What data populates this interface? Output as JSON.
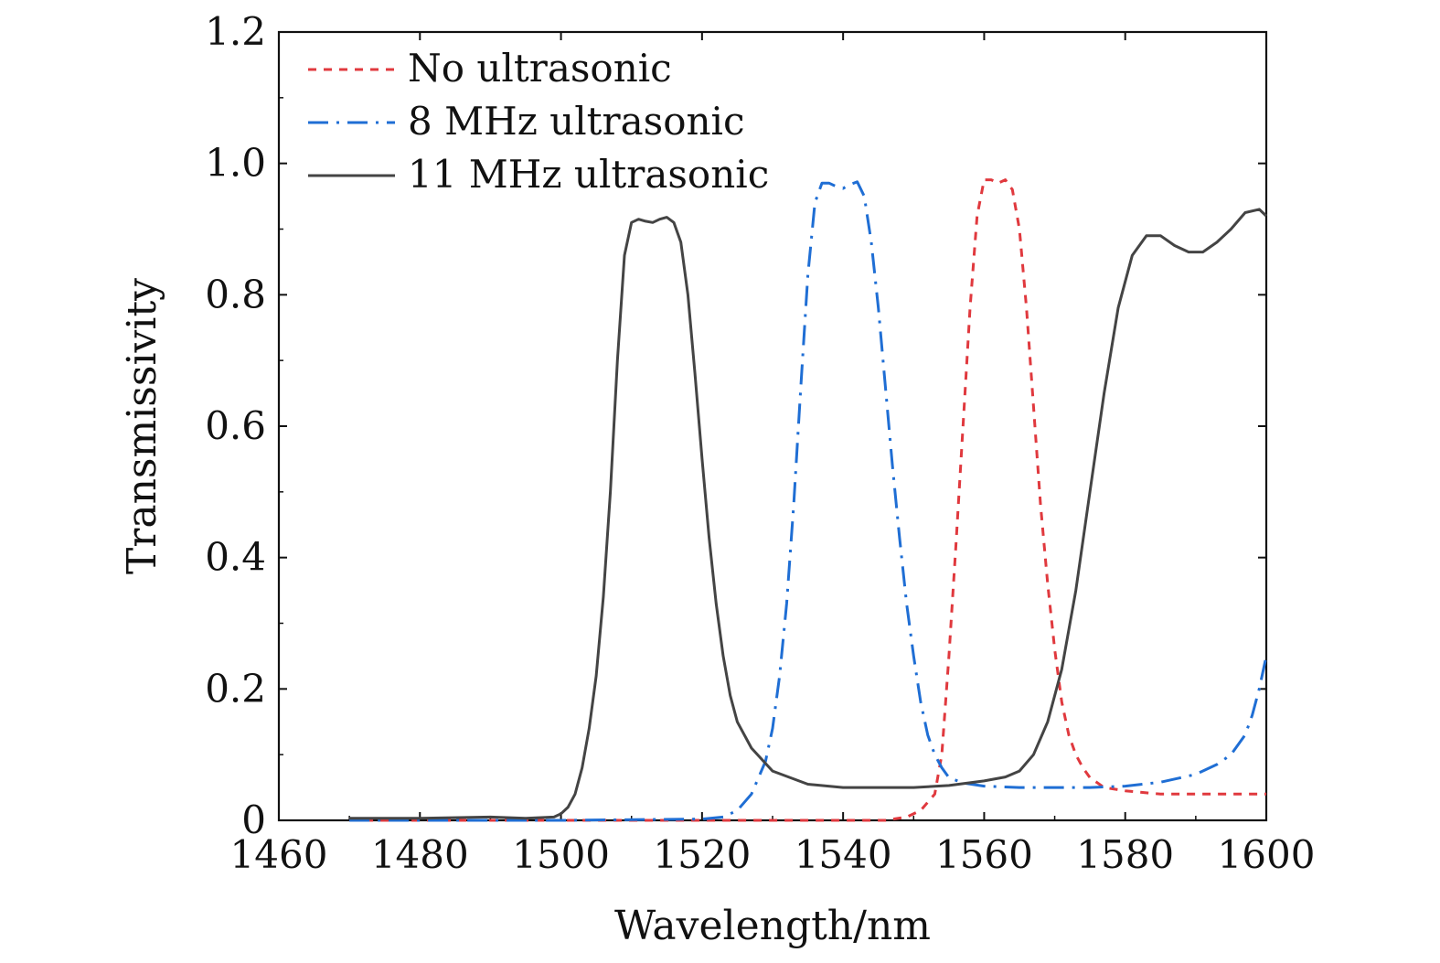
{
  "chart_data": {
    "type": "line",
    "xlabel": "Wavelength/nm",
    "ylabel": "Transmissivity",
    "xlim": [
      1460,
      1600
    ],
    "ylim": [
      0,
      1.2
    ],
    "x_ticks": [
      1460,
      1480,
      1500,
      1520,
      1540,
      1560,
      1580,
      1600
    ],
    "x_tick_labels": [
      "1460",
      "1480",
      "1500",
      "1520",
      "1540",
      "1560",
      "1580",
      "1600"
    ],
    "y_ticks": [
      0,
      0.2,
      0.4,
      0.6,
      0.8,
      1.0,
      1.2
    ],
    "y_tick_labels": [
      "0",
      "0.2",
      "0.4",
      "0.6",
      "0.8",
      "1.0",
      "1.2"
    ],
    "grid": false,
    "legend_position": "top-left",
    "series": [
      {
        "name": "No ultrasonic",
        "color": "#e0393e",
        "style": "dashed",
        "x": [
          1470,
          1500,
          1530,
          1546,
          1549,
          1551,
          1553,
          1554,
          1555,
          1556,
          1557,
          1558,
          1559,
          1560,
          1561,
          1562,
          1563,
          1564,
          1565,
          1566,
          1567,
          1568,
          1569,
          1570,
          1571,
          1572,
          1573,
          1574,
          1575,
          1577,
          1580,
          1585,
          1590,
          1595,
          1600
        ],
        "values": [
          0.0,
          0.0,
          0.0,
          0.0,
          0.005,
          0.015,
          0.04,
          0.1,
          0.25,
          0.42,
          0.6,
          0.78,
          0.92,
          0.975,
          0.975,
          0.97,
          0.975,
          0.96,
          0.9,
          0.78,
          0.63,
          0.48,
          0.36,
          0.26,
          0.18,
          0.13,
          0.1,
          0.08,
          0.065,
          0.05,
          0.045,
          0.04,
          0.04,
          0.04,
          0.04
        ]
      },
      {
        "name": "8 MHz ultrasonic",
        "color": "#1f6ed4",
        "style": "dashdot",
        "x": [
          1470,
          1500,
          1520,
          1523,
          1525,
          1527,
          1529,
          1530,
          1531,
          1532,
          1533,
          1534,
          1535,
          1536,
          1537,
          1538,
          1539,
          1540,
          1541,
          1542,
          1543,
          1544,
          1545,
          1546,
          1547,
          1548,
          1549,
          1550,
          1551,
          1552,
          1553,
          1554,
          1555,
          1557,
          1560,
          1565,
          1570,
          1575,
          1580,
          1585,
          1590,
          1593,
          1595,
          1597,
          1598,
          1599,
          1600
        ],
        "values": [
          0.0,
          0.0,
          0.002,
          0.005,
          0.015,
          0.04,
          0.09,
          0.14,
          0.22,
          0.33,
          0.48,
          0.66,
          0.83,
          0.94,
          0.97,
          0.97,
          0.965,
          0.962,
          0.968,
          0.972,
          0.95,
          0.88,
          0.78,
          0.66,
          0.54,
          0.43,
          0.33,
          0.25,
          0.18,
          0.13,
          0.1,
          0.08,
          0.065,
          0.057,
          0.052,
          0.05,
          0.05,
          0.05,
          0.052,
          0.058,
          0.07,
          0.085,
          0.1,
          0.13,
          0.16,
          0.2,
          0.25
        ]
      },
      {
        "name": "11 MHz ultrasonic",
        "color": "#444444",
        "style": "solid",
        "x": [
          1470,
          1480,
          1490,
          1495,
          1499,
          1500,
          1501,
          1502,
          1503,
          1504,
          1505,
          1506,
          1507,
          1508,
          1509,
          1510,
          1511,
          1512,
          1513,
          1514,
          1515,
          1516,
          1517,
          1518,
          1519,
          1520,
          1521,
          1522,
          1523,
          1524,
          1525,
          1527,
          1530,
          1535,
          1540,
          1545,
          1550,
          1555,
          1560,
          1563,
          1565,
          1567,
          1569,
          1571,
          1573,
          1575,
          1577,
          1579,
          1581,
          1583,
          1585,
          1587,
          1589,
          1591,
          1593,
          1595,
          1597,
          1599,
          1600
        ],
        "values": [
          0.003,
          0.003,
          0.005,
          0.003,
          0.005,
          0.01,
          0.02,
          0.04,
          0.08,
          0.14,
          0.22,
          0.34,
          0.5,
          0.7,
          0.86,
          0.91,
          0.915,
          0.912,
          0.91,
          0.915,
          0.918,
          0.91,
          0.88,
          0.8,
          0.68,
          0.55,
          0.43,
          0.33,
          0.25,
          0.19,
          0.15,
          0.11,
          0.075,
          0.055,
          0.05,
          0.05,
          0.05,
          0.053,
          0.06,
          0.066,
          0.075,
          0.1,
          0.15,
          0.23,
          0.35,
          0.5,
          0.65,
          0.78,
          0.86,
          0.89,
          0.89,
          0.875,
          0.865,
          0.865,
          0.88,
          0.9,
          0.925,
          0.93,
          0.92
        ]
      }
    ]
  }
}
